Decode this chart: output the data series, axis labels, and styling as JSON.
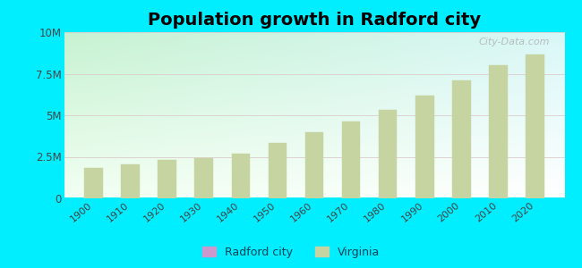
{
  "title": "Population growth in Radford city",
  "years": [
    1900,
    1910,
    1920,
    1930,
    1940,
    1950,
    1960,
    1970,
    1980,
    1990,
    2000,
    2010,
    2020
  ],
  "virginia_pop": [
    1854184,
    2061612,
    2309187,
    2421851,
    2677773,
    3318680,
    3966949,
    4648494,
    5346818,
    6187358,
    7078515,
    8001024,
    8631393
  ],
  "bar_color": "#c5d4a0",
  "bar_edge_color": "#c5d4a0",
  "outer_bg": "#00eeff",
  "ylabel_ticks": [
    "0",
    "2.5M",
    "5M",
    "7.5M",
    "10M"
  ],
  "ylabel_values": [
    0,
    2500000,
    5000000,
    7500000,
    10000000
  ],
  "ylim": [
    0,
    10000000
  ],
  "xlim_left": 1892,
  "xlim_right": 2028,
  "watermark": "City-Data.com",
  "legend_radford_color": "#cc99cc",
  "legend_virginia_color": "#c5d4a0",
  "title_fontsize": 14,
  "bg_color_topleft": [
    0.78,
    0.95,
    0.82
  ],
  "bg_color_topright": [
    0.85,
    0.97,
    0.97
  ],
  "bg_color_bottomleft": [
    0.95,
    1.0,
    0.95
  ],
  "bg_color_bottomright": [
    1.0,
    1.0,
    1.0
  ]
}
